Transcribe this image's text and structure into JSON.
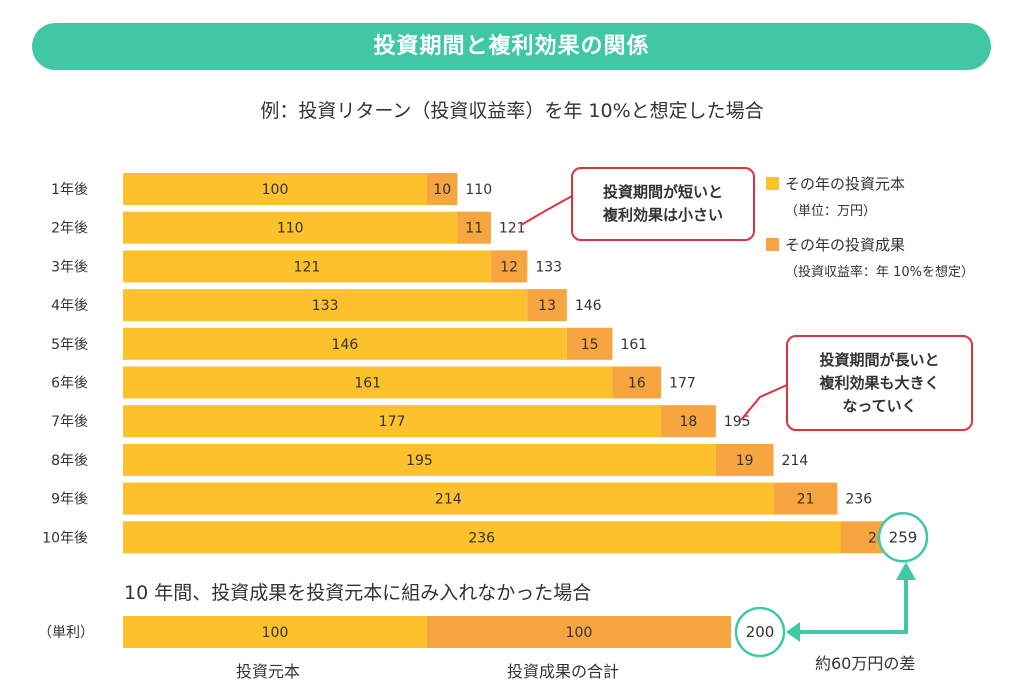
{
  "title": "投資期間と複利効果の関係",
  "subtitle": "例：投資リターン（投資収益率）を年 10%と想定した場合",
  "colors": {
    "banner": "#3fc7a6",
    "principal": "#fcc12d",
    "return": "#f7a541",
    "callout_border": "#e0323c",
    "circle_border": "#3fc7a6",
    "arrow": "#3fc7a6"
  },
  "legend": {
    "principal": "その年の投資元本",
    "principal_note": "（単位：万円）",
    "return": "その年の投資成果",
    "return_note": "（投資収益率：年 10%を想定）"
  },
  "callouts": {
    "short": [
      "投資期間が短いと",
      "複利効果は小さい"
    ],
    "long": [
      "投資期間が長いと",
      "複利効果も大きく",
      "なっていく"
    ]
  },
  "simple_interest": {
    "heading": "10 年間、投資成果を投資元本に組み入れなかった場合",
    "row_label": "（単利）",
    "principal": 100,
    "return_total": 100,
    "total": 200,
    "caption_principal": "投資元本",
    "caption_return": "投資成果の合計",
    "difference": "約60万円の差"
  },
  "chart_data": {
    "type": "bar",
    "orientation": "horizontal",
    "stacked": true,
    "title": "投資期間と複利効果の関係",
    "subtitle": "例：投資リターン（投資収益率）を年 10%と想定した場合",
    "categories": [
      "1年後",
      "2年後",
      "3年後",
      "4年後",
      "5年後",
      "6年後",
      "7年後",
      "8年後",
      "9年後",
      "10年後"
    ],
    "series": [
      {
        "name": "その年の投資元本",
        "values": [
          100,
          110,
          121,
          133,
          146,
          161,
          177,
          195,
          214,
          236
        ]
      },
      {
        "name": "その年の投資成果",
        "values": [
          10,
          11,
          12,
          13,
          15,
          16,
          18,
          19,
          21,
          24
        ]
      }
    ],
    "totals": [
      110,
      121,
      133,
      146,
      161,
      177,
      195,
      214,
      236,
      259
    ],
    "xlim": [
      0,
      260
    ],
    "grid": false,
    "legend_position": "top-right"
  }
}
